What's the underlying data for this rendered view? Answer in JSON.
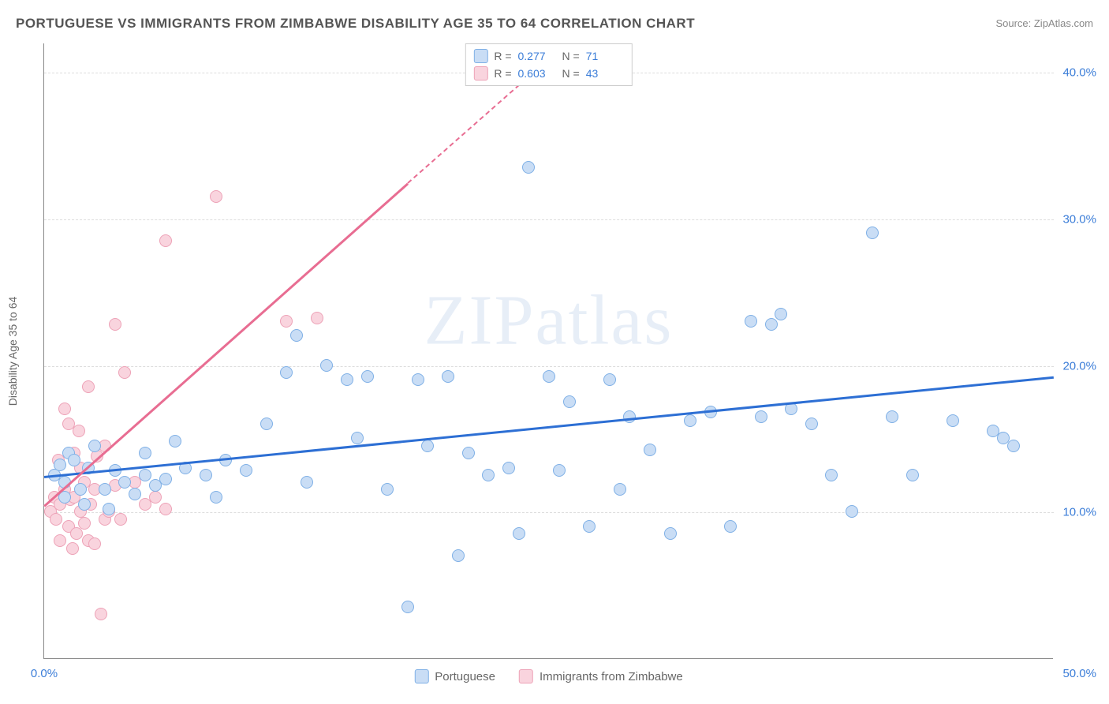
{
  "title": "PORTUGUESE VS IMMIGRANTS FROM ZIMBABWE DISABILITY AGE 35 TO 64 CORRELATION CHART",
  "source": "Source: ZipAtlas.com",
  "ylabel": "Disability Age 35 to 64",
  "watermark_a": "ZIP",
  "watermark_b": "atlas",
  "chart": {
    "type": "scatter",
    "xlim": [
      0,
      50
    ],
    "ylim": [
      0,
      42
    ],
    "yticks": [
      10,
      20,
      30,
      40
    ],
    "ytick_labels": [
      "10.0%",
      "20.0%",
      "30.0%",
      "40.0%"
    ],
    "xticks": [
      0,
      50
    ],
    "xtick_labels": [
      "0.0%",
      "50.0%"
    ],
    "grid_color": "#dddddd",
    "background_color": "#ffffff",
    "marker_radius": 8,
    "marker_stroke": 1.5,
    "series": [
      {
        "name": "Portuguese",
        "r": 0.277,
        "n": 71,
        "fill": "#c9ddf5",
        "stroke": "#7fb0e6",
        "line_color": "#2d6fd4",
        "trend": {
          "x1": 0,
          "y1": 12.5,
          "x2": 50,
          "y2": 19.3
        },
        "points": [
          [
            0.5,
            12.5
          ],
          [
            0.8,
            13.2
          ],
          [
            1.0,
            12.0
          ],
          [
            1.0,
            11.0
          ],
          [
            1.2,
            14.0
          ],
          [
            1.5,
            13.5
          ],
          [
            1.8,
            11.5
          ],
          [
            2.0,
            10.5
          ],
          [
            2.2,
            13.0
          ],
          [
            2.5,
            14.5
          ],
          [
            3.0,
            11.5
          ],
          [
            3.2,
            10.2
          ],
          [
            3.5,
            12.8
          ],
          [
            4.0,
            12.0
          ],
          [
            4.5,
            11.2
          ],
          [
            5.0,
            12.5
          ],
          [
            5.0,
            14.0
          ],
          [
            5.5,
            11.8
          ],
          [
            6.0,
            12.2
          ],
          [
            6.5,
            14.8
          ],
          [
            7.0,
            13.0
          ],
          [
            8.0,
            12.5
          ],
          [
            8.5,
            11.0
          ],
          [
            9.0,
            13.5
          ],
          [
            10.0,
            12.8
          ],
          [
            11.0,
            16.0
          ],
          [
            12.0,
            19.5
          ],
          [
            12.5,
            22.0
          ],
          [
            13.0,
            12.0
          ],
          [
            14.0,
            20.0
          ],
          [
            15.0,
            19.0
          ],
          [
            15.5,
            15.0
          ],
          [
            16.0,
            19.2
          ],
          [
            17.0,
            11.5
          ],
          [
            18.0,
            3.5
          ],
          [
            18.5,
            19.0
          ],
          [
            19.0,
            14.5
          ],
          [
            20.0,
            19.2
          ],
          [
            20.5,
            7.0
          ],
          [
            21.0,
            14.0
          ],
          [
            22.0,
            12.5
          ],
          [
            23.0,
            13.0
          ],
          [
            23.5,
            8.5
          ],
          [
            24.0,
            33.5
          ],
          [
            25.0,
            19.2
          ],
          [
            25.5,
            12.8
          ],
          [
            26.0,
            17.5
          ],
          [
            27.0,
            9.0
          ],
          [
            28.0,
            19.0
          ],
          [
            28.5,
            11.5
          ],
          [
            29.0,
            16.5
          ],
          [
            30.0,
            14.2
          ],
          [
            31.0,
            8.5
          ],
          [
            32.0,
            16.2
          ],
          [
            33.0,
            16.8
          ],
          [
            34.0,
            9.0
          ],
          [
            35.0,
            23.0
          ],
          [
            35.5,
            16.5
          ],
          [
            36.0,
            22.8
          ],
          [
            36.5,
            23.5
          ],
          [
            37.0,
            17.0
          ],
          [
            38.0,
            16.0
          ],
          [
            39.0,
            12.5
          ],
          [
            40.0,
            10.0
          ],
          [
            41.0,
            29.0
          ],
          [
            42.0,
            16.5
          ],
          [
            43.0,
            12.5
          ],
          [
            45.0,
            16.2
          ],
          [
            47.0,
            15.5
          ],
          [
            47.5,
            15.0
          ],
          [
            48.0,
            14.5
          ]
        ]
      },
      {
        "name": "Immigrants from Zimbabwe",
        "r": 0.603,
        "n": 43,
        "fill": "#f9d4de",
        "stroke": "#eda2b7",
        "line_color": "#e86d92",
        "trend": {
          "x1": 0,
          "y1": 10.5,
          "x2": 18,
          "y2": 32.5
        },
        "trend_dashed": {
          "x1": 18,
          "y1": 32.5,
          "x2": 25,
          "y2": 41.0
        },
        "points": [
          [
            0.3,
            10.0
          ],
          [
            0.5,
            11.0
          ],
          [
            0.5,
            12.5
          ],
          [
            0.6,
            9.5
          ],
          [
            0.7,
            13.5
          ],
          [
            0.8,
            10.5
          ],
          [
            0.8,
            8.0
          ],
          [
            1.0,
            11.5
          ],
          [
            1.0,
            17.0
          ],
          [
            1.2,
            9.0
          ],
          [
            1.2,
            16.0
          ],
          [
            1.3,
            10.8
          ],
          [
            1.4,
            7.5
          ],
          [
            1.5,
            14.0
          ],
          [
            1.5,
            11.0
          ],
          [
            1.6,
            8.5
          ],
          [
            1.8,
            10.0
          ],
          [
            1.8,
            13.0
          ],
          [
            2.0,
            9.2
          ],
          [
            2.0,
            12.0
          ],
          [
            2.2,
            18.5
          ],
          [
            2.2,
            8.0
          ],
          [
            2.3,
            10.5
          ],
          [
            2.5,
            7.8
          ],
          [
            2.5,
            11.5
          ],
          [
            2.8,
            3.0
          ],
          [
            3.0,
            9.5
          ],
          [
            3.0,
            14.5
          ],
          [
            3.2,
            10.0
          ],
          [
            3.5,
            11.8
          ],
          [
            3.5,
            22.8
          ],
          [
            3.8,
            9.5
          ],
          [
            4.0,
            19.5
          ],
          [
            5.0,
            10.5
          ],
          [
            5.5,
            11.0
          ],
          [
            6.0,
            10.2
          ],
          [
            6.0,
            28.5
          ],
          [
            8.5,
            31.5
          ],
          [
            12.0,
            23.0
          ],
          [
            13.5,
            23.2
          ],
          [
            4.5,
            12.0
          ],
          [
            1.7,
            15.5
          ],
          [
            2.6,
            13.8
          ]
        ]
      }
    ]
  },
  "legend_top": {
    "r_label": "R  =",
    "n_label": "N  =",
    "rows": [
      {
        "swatch_fill": "#c9ddf5",
        "swatch_stroke": "#7fb0e6",
        "r": "0.277",
        "n": "71"
      },
      {
        "swatch_fill": "#f9d4de",
        "swatch_stroke": "#eda2b7",
        "r": "0.603",
        "n": "43"
      }
    ]
  },
  "legend_bottom": [
    {
      "swatch_fill": "#c9ddf5",
      "swatch_stroke": "#7fb0e6",
      "label": "Portuguese"
    },
    {
      "swatch_fill": "#f9d4de",
      "swatch_stroke": "#eda2b7",
      "label": "Immigrants from Zimbabwe"
    }
  ]
}
